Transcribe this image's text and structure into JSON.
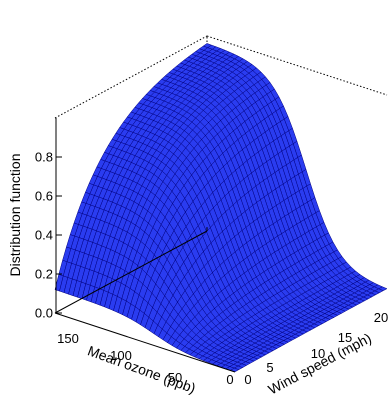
{
  "chart_data": {
    "type": "surface",
    "zlabel": "Distribution function",
    "xlabel": "Mean ozone (ppb)",
    "ylabel": "Wind speed (mph)",
    "z_ticks": [
      "0.0",
      "0.2",
      "0.4",
      "0.6",
      "0.8"
    ],
    "x_ticks": [
      "0",
      "50",
      "100",
      "150"
    ],
    "y_ticks": [
      "0",
      "5",
      "10",
      "15",
      "20"
    ],
    "x_range": [
      0,
      170
    ],
    "y_range": [
      0,
      20
    ],
    "z_range": [
      0,
      1
    ],
    "surface_color": "#2a3cf0",
    "mesh_color": "#000080",
    "grid_resolution": 40
  }
}
